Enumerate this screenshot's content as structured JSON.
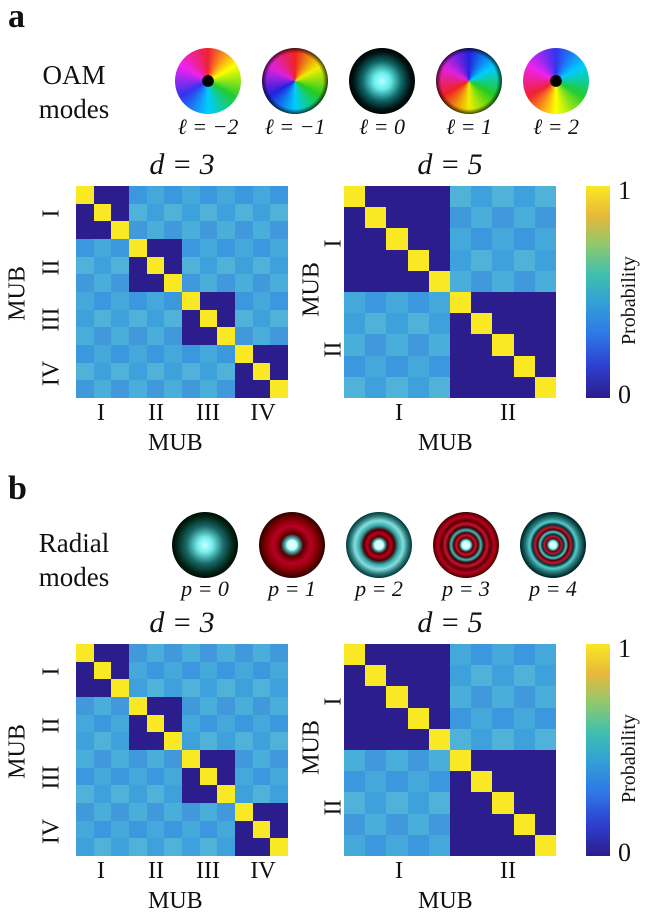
{
  "panels": {
    "a": {
      "letter": "a",
      "title_line1": "OAM",
      "title_line2": "modes",
      "modes": [
        "ℓ = −2",
        "ℓ = −1",
        "ℓ = 0",
        "ℓ = 1",
        "ℓ = 2"
      ]
    },
    "b": {
      "letter": "b",
      "title_line1": "Radial",
      "title_line2": "modes",
      "modes": [
        "p = 0",
        "p = 1",
        "p = 2",
        "p = 3",
        "p = 4"
      ]
    }
  },
  "colorbar": {
    "label": "Probability",
    "min_label": "0",
    "max_label": "1"
  },
  "axis_title": "MUB",
  "colors": {
    "low": "#2b1d8c",
    "mid": "#45a8db",
    "high": "#f9e824"
  },
  "chart_data": [
    {
      "type": "heatmap",
      "panel": "a",
      "title": "d = 3",
      "size": 12,
      "groups": [
        "I",
        "II",
        "III",
        "IV"
      ],
      "group_size": 3,
      "xlabel": "MUB",
      "ylabel": "MUB",
      "range": [
        0,
        1
      ],
      "description_values": {
        "diagonal": 1.0,
        "same_mub_offdiag": 0.0,
        "cross_mub": 0.33
      }
    },
    {
      "type": "heatmap",
      "panel": "a",
      "title": "d = 5",
      "size": 10,
      "groups": [
        "I",
        "II"
      ],
      "group_size": 5,
      "xlabel": "MUB",
      "ylabel": "MUB",
      "range": [
        0,
        1
      ],
      "description_values": {
        "diagonal": 1.0,
        "same_mub_offdiag": 0.0,
        "cross_mub": 0.2
      }
    },
    {
      "type": "heatmap",
      "panel": "b",
      "title": "d = 3",
      "size": 12,
      "groups": [
        "I",
        "II",
        "III",
        "IV"
      ],
      "group_size": 3,
      "xlabel": "MUB",
      "ylabel": "MUB",
      "range": [
        0,
        1
      ],
      "description_values": {
        "diagonal": 1.0,
        "same_mub_offdiag": 0.0,
        "cross_mub": 0.33
      }
    },
    {
      "type": "heatmap",
      "panel": "b",
      "title": "d = 5",
      "size": 10,
      "groups": [
        "I",
        "II"
      ],
      "group_size": 5,
      "xlabel": "MUB",
      "ylabel": "MUB",
      "range": [
        0,
        1
      ],
      "description_values": {
        "diagonal": 1.0,
        "same_mub_offdiag": 0.0,
        "cross_mub": 0.2
      }
    }
  ]
}
